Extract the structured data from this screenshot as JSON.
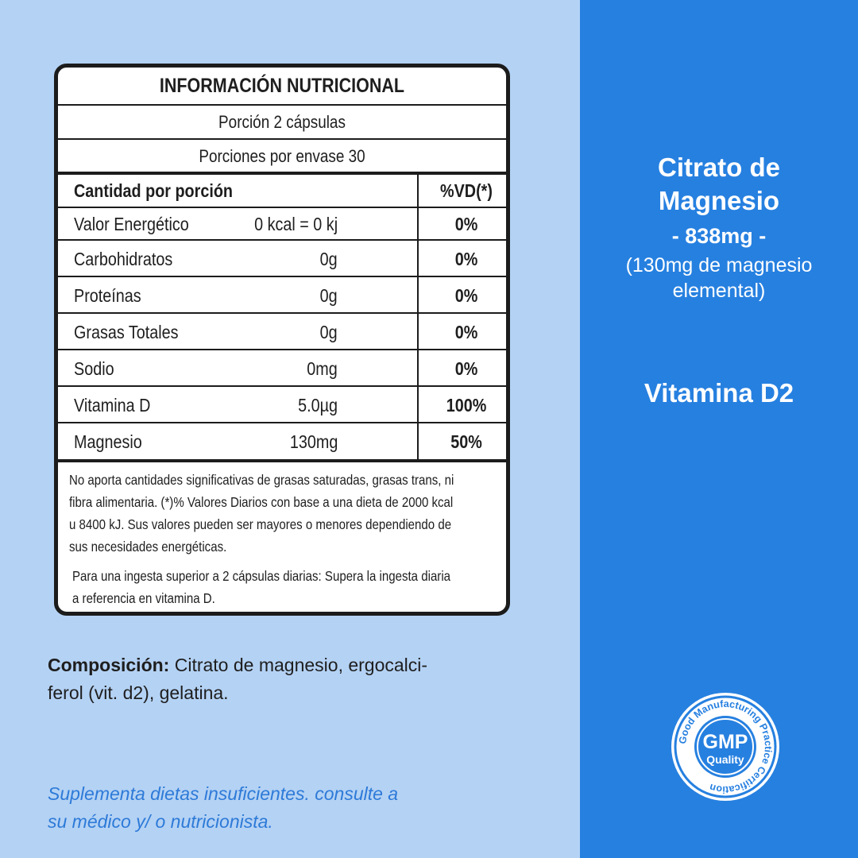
{
  "nutrition": {
    "title": "INFORMACIÓN NUTRICIONAL",
    "serving": "Porción 2 cápsulas",
    "servings_per_container": "Porciones por envase 30",
    "header": {
      "name": "Cantidad por porción",
      "vd": "%VD(*)"
    },
    "rows": [
      {
        "name": "Valor Energético",
        "amount": "0 kcal = 0 kj",
        "vd": "0%"
      },
      {
        "name": "Carbohidratos",
        "amount": "0g",
        "vd": "0%"
      },
      {
        "name": "Proteínas",
        "amount": "0g",
        "vd": "0%"
      },
      {
        "name": "Grasas Totales",
        "amount": "0g",
        "vd": "0%"
      },
      {
        "name": "Sodio",
        "amount": "0mg",
        "vd": "0%"
      },
      {
        "name": "Vitamina D",
        "amount": "5.0µg",
        "vd": "100%"
      },
      {
        "name": "Magnesio",
        "amount": "130mg",
        "vd": "50%"
      }
    ],
    "footnote_1": [
      "No aporta cantidades significativas de grasas saturadas, grasas trans, ni",
      "fibra alimentaria. (*)% Valores Diarios con base a una dieta de 2000 kcal",
      "u 8400 kJ. Sus valores pueden ser mayores o menores dependiendo de",
      "sus necesidades energéticas."
    ],
    "footnote_2": [
      "Para una ingesta superior a 2 cápsulas diarias: Supera la ingesta diaria",
      "a referencia en vitamina D."
    ]
  },
  "composition": {
    "label": "Composición:",
    "line1": " Citrato de magnesio, ergocalci-",
    "line2": "ferol (vit. d2), gelatina."
  },
  "disclaimer": {
    "line1": "Suplementa dietas insuficientes. consulte a",
    "line2": "su médico y/ o nutricionista."
  },
  "product": {
    "name_line1": "Citrato de",
    "name_line2": "Magnesio",
    "dose": "- 838mg -",
    "note_line1": "(130mg de magnesio",
    "note_line2": "elemental)",
    "extra": "Vitamina D2"
  },
  "badge": {
    "main": "GMP",
    "sub": "Quality",
    "ring_text": "Good Manufacturing Practice Certification"
  },
  "colors": {
    "left_bg": "#b4d2f4",
    "right_bg": "#2680e0",
    "disclaimer_text": "#2d7ad8"
  }
}
